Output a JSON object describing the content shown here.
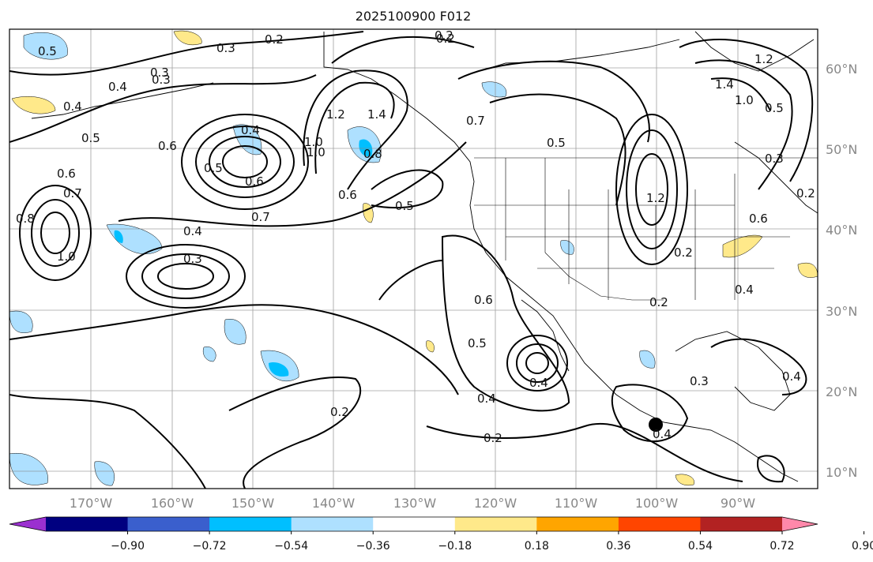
{
  "title": "2025100900 F012",
  "lon_labels": [
    "170°W",
    "160°W",
    "150°W",
    "140°W",
    "130°W",
    "120°W",
    "110°W",
    "100°W",
    "90°W"
  ],
  "lat_labels": [
    "60°N",
    "50°N",
    "40°N",
    "30°N",
    "20°N",
    "10°N"
  ],
  "colorbar": {
    "ticks": [
      "−0.90",
      "−0.72",
      "−0.54",
      "−0.36",
      "−0.18",
      "0.18",
      "0.36",
      "0.54",
      "0.72",
      "0.90"
    ],
    "colors": [
      "#9b30d0",
      "#000080",
      "#3a5fcd",
      "#00bfff",
      "#aee0ff",
      "#ffffff",
      "#ffe98a",
      "#ffa500",
      "#ff4500",
      "#b22222",
      "#ff88aa"
    ]
  },
  "contour_labels": [
    "0.5",
    "0.2",
    "0.3",
    "0.2",
    "0.3",
    "0.4",
    "0.5",
    "0.6",
    "0.6",
    "0.7",
    "0.8",
    "1.0",
    "0.4",
    "0.5",
    "0.6",
    "0.4",
    "0.3",
    "0.2",
    "0.7",
    "1.0",
    "1.2",
    "1.4",
    "0.8",
    "0.6",
    "0.5",
    "0.7",
    "0.5",
    "1.4",
    "1.2",
    "1.0",
    "0.5",
    "0.3",
    "0.2",
    "0.6",
    "0.5",
    "0.4",
    "0.2",
    "0.4",
    "0.3",
    "0.4",
    "0.2",
    "0.6",
    "0.4",
    "0.2",
    "0.4",
    "0.3",
    "0.4",
    "1.2",
    "1.0",
    "0.2"
  ],
  "marker": {
    "name": "storm-center",
    "color": "#000000"
  }
}
